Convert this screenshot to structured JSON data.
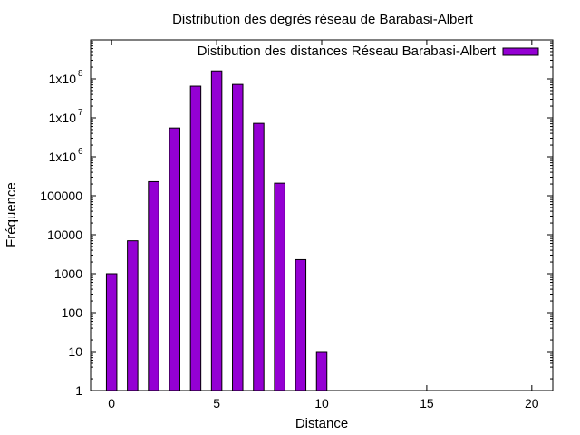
{
  "chart_data": {
    "type": "bar",
    "title": "Distribution des degrés réseau de Barabasi-Albert",
    "xlabel": "Distance",
    "ylabel": "Fréquence",
    "x": [
      0,
      1,
      2,
      3,
      4,
      5,
      6,
      7,
      8,
      9,
      10
    ],
    "series": [
      {
        "name": "Distibution des distances Réseau Barabasi-Albert",
        "values": [
          1000,
          7000,
          230000,
          5500000,
          65000000,
          160000000,
          72000000,
          7200000,
          210000,
          2300,
          10
        ],
        "color": "#9400d3"
      }
    ],
    "xlim": [
      -1,
      21
    ],
    "ylim": [
      1,
      1000000000
    ],
    "y_scale": "log",
    "xticks": [
      0,
      5,
      10,
      15,
      20
    ],
    "xtick_labels": [
      "0",
      "5",
      "10",
      "15",
      "20"
    ],
    "yticks": [
      1,
      10,
      100,
      1000,
      10000,
      100000,
      1000000,
      10000000,
      100000000
    ],
    "ytick_labels": [
      {
        "text": "1",
        "exp": ""
      },
      {
        "text": "10",
        "exp": ""
      },
      {
        "text": "100",
        "exp": ""
      },
      {
        "text": "1000",
        "exp": ""
      },
      {
        "text": "10000",
        "exp": ""
      },
      {
        "text": "100000",
        "exp": ""
      },
      {
        "text": "1x10",
        "exp": "6"
      },
      {
        "text": "1x10",
        "exp": "7"
      },
      {
        "text": "1x10",
        "exp": "8"
      }
    ],
    "grid": false,
    "legend_position": "top-right"
  }
}
